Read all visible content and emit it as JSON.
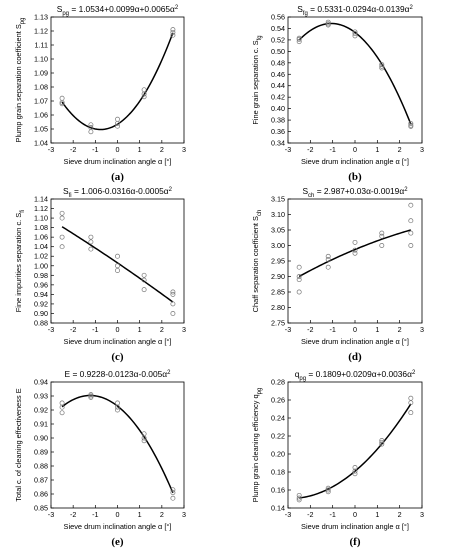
{
  "figure": {
    "background": "#ffffff",
    "curve_color": "#000000",
    "marker_color": "#777777"
  },
  "chart_data": [
    {
      "type": "scatter",
      "panel_label": "(a)",
      "title": "S_pg = 1.0534+0.0099α+0.0065α²",
      "title_parts": [
        "S",
        "pg",
        " = 1.0534+0.0099α+0.0065α",
        "2"
      ],
      "xlabel": "Sieve drum inclination angle  α [°]",
      "ylabel": "Plump grain separation coefficient S_pg",
      "ylabel_parts": [
        "Plump grain separation coefficient S",
        "pg"
      ],
      "xlim": [
        -3,
        3
      ],
      "ylim": [
        1.04,
        1.13
      ],
      "xticks": [
        "-3",
        "-2",
        "-1",
        "0",
        "1",
        "2",
        "3"
      ],
      "yticks": [
        "1.04",
        "1.05",
        "1.06",
        "1.07",
        "1.08",
        "1.09",
        "1.10",
        "1.11",
        "1.12",
        "1.13"
      ],
      "fit": {
        "a": 1.0534,
        "b": 0.0099,
        "c": 0.0065,
        "x_range": [
          -2.5,
          2.5
        ]
      },
      "x": [
        -2.5,
        -2.5,
        -2.5,
        -1.2,
        -1.2,
        -1.2,
        0,
        0,
        0,
        1.2,
        1.2,
        1.2,
        2.5,
        2.5,
        2.5
      ],
      "y": [
        1.068,
        1.069,
        1.072,
        1.048,
        1.051,
        1.053,
        1.052,
        1.054,
        1.057,
        1.073,
        1.075,
        1.078,
        1.117,
        1.119,
        1.121
      ],
      "grid": false
    },
    {
      "type": "scatter",
      "panel_label": "(b)",
      "title": "S_fg = 0.5331-0.0294α-0.0139α²",
      "title_parts": [
        "S",
        "fg",
        " = 0.5331-0.0294α-0.0139α",
        "2"
      ],
      "xlabel": "Sieve drum inclination angle  α [°]",
      "ylabel": "Fine grain separation c. S_fg",
      "ylabel_parts": [
        "Fine grain separation c. S",
        "fg"
      ],
      "xlim": [
        -3,
        3
      ],
      "ylim": [
        0.34,
        0.56
      ],
      "xticks": [
        "-3",
        "-2",
        "-1",
        "0",
        "1",
        "2",
        "3"
      ],
      "yticks": [
        "0.34",
        "0.36",
        "0.38",
        "0.40",
        "0.42",
        "0.44",
        "0.46",
        "0.48",
        "0.50",
        "0.52",
        "0.54",
        "0.56"
      ],
      "fit": {
        "a": 0.5331,
        "b": -0.0294,
        "c": -0.0139,
        "x_range": [
          -2.5,
          2.5
        ]
      },
      "x": [
        -2.5,
        -2.5,
        -2.5,
        -1.2,
        -1.2,
        -1.2,
        0,
        0,
        0,
        1.2,
        1.2,
        1.2,
        2.5,
        2.5,
        2.5
      ],
      "y": [
        0.517,
        0.521,
        0.523,
        0.546,
        0.548,
        0.551,
        0.527,
        0.531,
        0.534,
        0.471,
        0.474,
        0.477,
        0.369,
        0.371,
        0.374
      ],
      "grid": false
    },
    {
      "type": "scatter",
      "panel_label": "(c)",
      "title": "S_fi = 1.006-0.0316α-0.0005α²",
      "title_parts": [
        "S",
        "fi",
        " = 1.006-0.0316α-0.0005α",
        "2"
      ],
      "xlabel": "Sieve drum inclination angle  α [°]",
      "ylabel": "Fine impurities separation c. S_fi",
      "ylabel_parts": [
        "Fine impurities separation c. S",
        "fi"
      ],
      "xlim": [
        -3,
        3
      ],
      "ylim": [
        0.88,
        1.14
      ],
      "xticks": [
        "-3",
        "-2",
        "-1",
        "0",
        "1",
        "2",
        "3"
      ],
      "yticks": [
        "0.88",
        "0.90",
        "0.92",
        "0.94",
        "0.96",
        "0.98",
        "1.00",
        "1.02",
        "1.04",
        "1.06",
        "1.08",
        "1.10",
        "1.12",
        "1.14"
      ],
      "fit": {
        "a": 1.006,
        "b": -0.0316,
        "c": -0.0005,
        "x_range": [
          -2.5,
          2.5
        ]
      },
      "x": [
        -2.5,
        -2.5,
        -2.5,
        -2.5,
        -1.2,
        -1.2,
        -1.2,
        0,
        0,
        0,
        1.2,
        1.2,
        1.2,
        2.5,
        2.5,
        2.5,
        2.5
      ],
      "y": [
        1.04,
        1.06,
        1.1,
        1.11,
        1.035,
        1.05,
        1.06,
        0.99,
        1.0,
        1.02,
        0.95,
        0.97,
        0.98,
        0.9,
        0.92,
        0.94,
        0.945
      ],
      "grid": false
    },
    {
      "type": "scatter",
      "panel_label": "(d)",
      "title": "S_ch = 2.987+0.03α-0.0019α²",
      "title_parts": [
        "S",
        "ch",
        " = 2.987+0.03α-0.0019α",
        "2"
      ],
      "xlabel": "Sieve drum inclination angle  α [°]",
      "ylabel": "Chaff separation coefficient S_ch",
      "ylabel_parts": [
        "Chaff separation coefficient S",
        "ch"
      ],
      "xlim": [
        -3,
        3
      ],
      "ylim": [
        2.75,
        3.15
      ],
      "xticks": [
        "-3",
        "-2",
        "-1",
        "0",
        "1",
        "2",
        "3"
      ],
      "yticks": [
        "2.75",
        "2.80",
        "2.85",
        "2.90",
        "2.95",
        "3.00",
        "3.05",
        "3.10",
        "3.15"
      ],
      "fit": {
        "a": 2.987,
        "b": 0.03,
        "c": -0.0019,
        "x_range": [
          -2.5,
          2.5
        ]
      },
      "x": [
        -2.5,
        -2.5,
        -2.5,
        -2.5,
        -1.2,
        -1.2,
        -1.2,
        0,
        0,
        0,
        1.2,
        1.2,
        1.2,
        2.5,
        2.5,
        2.5,
        2.5
      ],
      "y": [
        2.85,
        2.89,
        2.9,
        2.93,
        2.93,
        2.955,
        2.965,
        2.975,
        2.985,
        3.01,
        3.0,
        3.03,
        3.04,
        3.0,
        3.04,
        3.08,
        3.13
      ],
      "grid": false
    },
    {
      "type": "scatter",
      "panel_label": "(e)",
      "title": "E = 0.9228-0.0123α-0.005α²",
      "title_parts": [
        "E = 0.9228-0.0123α-0.005α",
        "2"
      ],
      "xlabel": "Sieve drum inclination angle  α [°]",
      "ylabel": "Total c. of cleaning effectiveness E",
      "ylabel_parts": [
        "Total c. of cleaning effectiveness E"
      ],
      "xlim": [
        -3,
        3
      ],
      "ylim": [
        0.85,
        0.94
      ],
      "xticks": [
        "-3",
        "-2",
        "-1",
        "0",
        "1",
        "2",
        "3"
      ],
      "yticks": [
        "0.85",
        "0.86",
        "0.87",
        "0.88",
        "0.89",
        "0.90",
        "0.91",
        "0.92",
        "0.93",
        "0.94"
      ],
      "fit": {
        "a": 0.9228,
        "b": -0.0123,
        "c": -0.005,
        "x_range": [
          -2.5,
          2.5
        ]
      },
      "x": [
        -2.5,
        -2.5,
        -2.5,
        -1.2,
        -1.2,
        -1.2,
        0,
        0,
        0,
        1.2,
        1.2,
        1.2,
        2.5,
        2.5,
        2.5
      ],
      "y": [
        0.918,
        0.922,
        0.925,
        0.929,
        0.93,
        0.931,
        0.92,
        0.922,
        0.925,
        0.898,
        0.9,
        0.903,
        0.857,
        0.861,
        0.863
      ],
      "grid": false
    },
    {
      "type": "scatter",
      "panel_label": "(f)",
      "title": "q_pg = 0.1809+0.0209α+0.0036α²",
      "title_parts": [
        "q",
        "pg",
        " = 0.1809+0.0209α+0.0036α",
        "2"
      ],
      "xlabel": "Sieve drum inclination angle  α [°]",
      "ylabel": "Plump grain cleaning efficiency q_pg",
      "ylabel_parts": [
        "Plump grain cleaning efficiency q",
        "pg"
      ],
      "xlim": [
        -3,
        3
      ],
      "ylim": [
        0.14,
        0.28
      ],
      "xticks": [
        "-3",
        "-2",
        "-1",
        "0",
        "1",
        "2",
        "3"
      ],
      "yticks": [
        "0.14",
        "0.16",
        "0.18",
        "0.20",
        "0.22",
        "0.24",
        "0.26",
        "0.28"
      ],
      "fit": {
        "a": 0.1809,
        "b": 0.0209,
        "c": 0.0036,
        "x_range": [
          -2.5,
          2.5
        ]
      },
      "x": [
        -2.5,
        -2.5,
        -2.5,
        -1.2,
        -1.2,
        -1.2,
        0,
        0,
        0,
        1.2,
        1.2,
        1.2,
        2.5,
        2.5,
        2.5
      ],
      "y": [
        0.149,
        0.151,
        0.154,
        0.158,
        0.16,
        0.162,
        0.178,
        0.181,
        0.185,
        0.211,
        0.213,
        0.215,
        0.246,
        0.257,
        0.262
      ],
      "grid": false
    }
  ]
}
